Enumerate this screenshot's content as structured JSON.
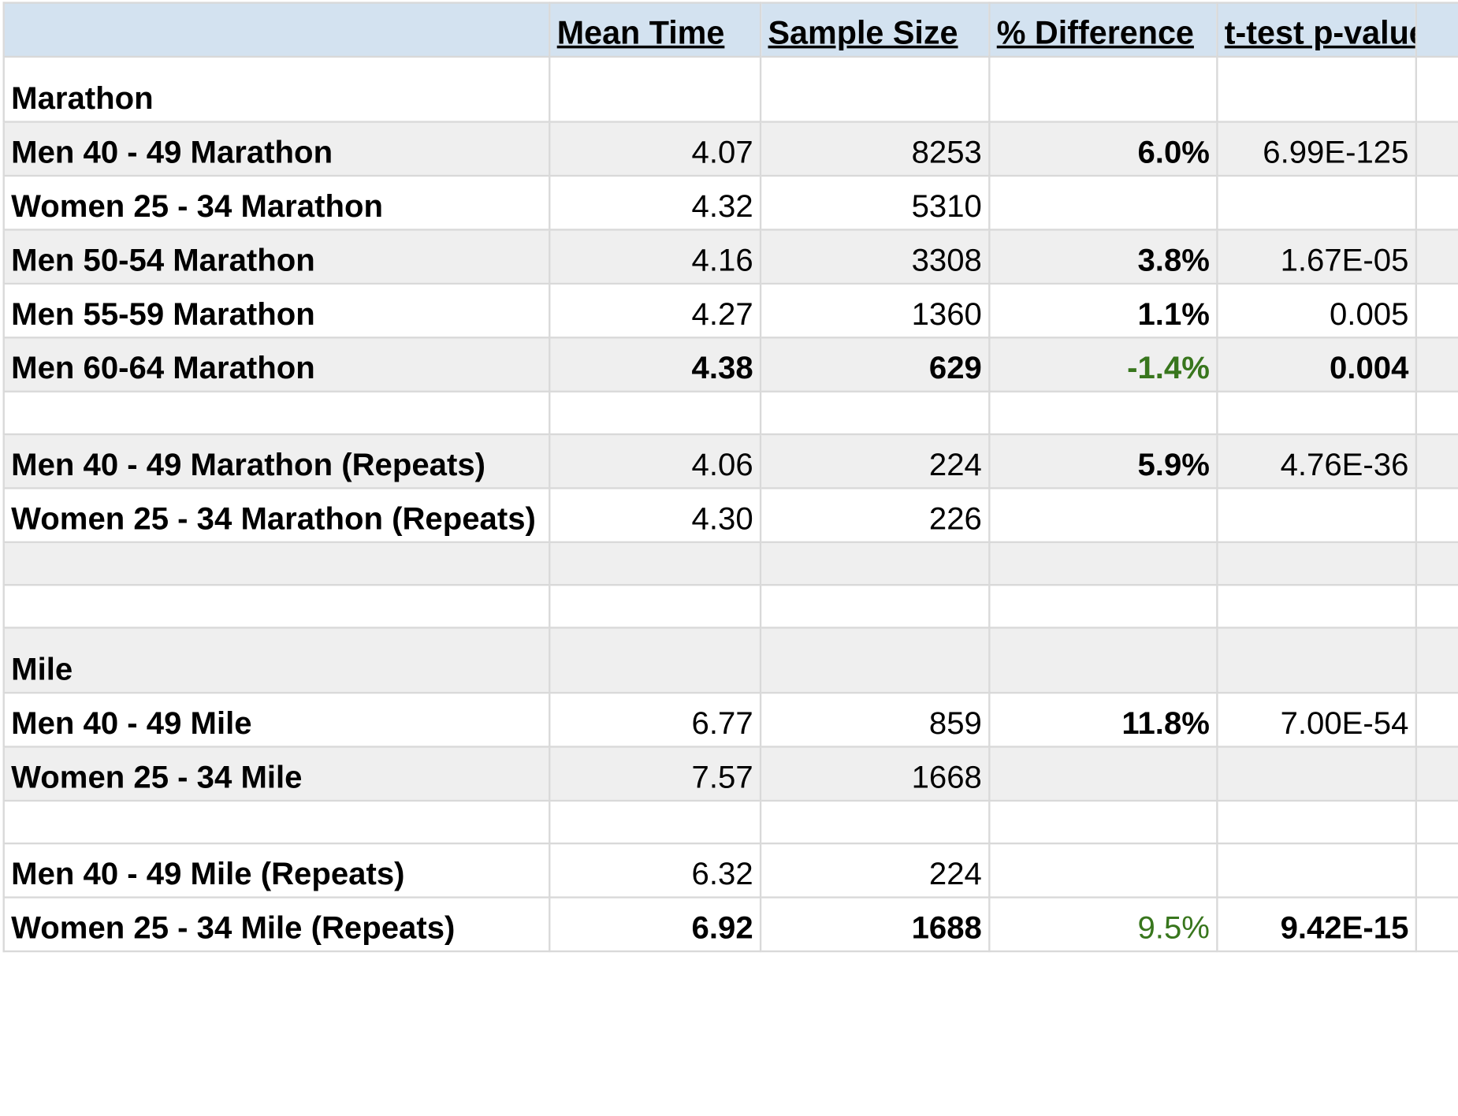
{
  "headers": {
    "mean_time": "Mean Time",
    "sample_size": "Sample Size",
    "pct_diff": "% Difference",
    "p_value": "t-test p-value"
  },
  "colors": {
    "header_fill": "#d3e2f0",
    "band_fill": "#efefef",
    "grid_line": "#d9d9d9",
    "highlight_green": "#38761d"
  },
  "marathon": {
    "title": "Marathon",
    "rows": [
      {
        "label": "Men 40 - 49 Marathon",
        "mean_time": "4.07",
        "sample_size": "8253",
        "pct_diff": "6.0%",
        "p_value": "6.99E-125"
      },
      {
        "label": "Women 25 - 34 Marathon",
        "mean_time": "4.32",
        "sample_size": "5310",
        "pct_diff": "",
        "p_value": ""
      },
      {
        "label": "Men 50-54 Marathon",
        "mean_time": "4.16",
        "sample_size": "3308",
        "pct_diff": "3.8%",
        "p_value": "1.67E-05"
      },
      {
        "label": "Men 55-59 Marathon",
        "mean_time": "4.27",
        "sample_size": "1360",
        "pct_diff": "1.1%",
        "p_value": "0.005"
      },
      {
        "label": "Men 60-64 Marathon",
        "mean_time": "4.38",
        "sample_size": "629",
        "pct_diff": "-1.4%",
        "p_value": "0.004"
      }
    ],
    "repeats": [
      {
        "label": "Men 40 - 49 Marathon (Repeats)",
        "mean_time": "4.06",
        "sample_size": "224",
        "pct_diff": "5.9%",
        "p_value": "4.76E-36"
      },
      {
        "label": "Women 25 - 34 Marathon (Repeats)",
        "mean_time": "4.30",
        "sample_size": "226",
        "pct_diff": "",
        "p_value": ""
      }
    ]
  },
  "mile": {
    "title": "Mile",
    "rows": [
      {
        "label": "Men 40 - 49 Mile",
        "mean_time": "6.77",
        "sample_size": "859",
        "pct_diff": "11.8%",
        "p_value": "7.00E-54"
      },
      {
        "label": "Women 25 - 34 Mile",
        "mean_time": "7.57",
        "sample_size": "1668",
        "pct_diff": "",
        "p_value": ""
      }
    ],
    "repeats": [
      {
        "label": "Men 40 - 49 Mile (Repeats)",
        "mean_time": "6.32",
        "sample_size": "224",
        "pct_diff": "",
        "p_value": ""
      },
      {
        "label": "Women 25 - 34 Mile (Repeats)",
        "mean_time": "6.92",
        "sample_size": "1688",
        "pct_diff": "9.5%",
        "p_value": "9.42E-15"
      }
    ]
  }
}
